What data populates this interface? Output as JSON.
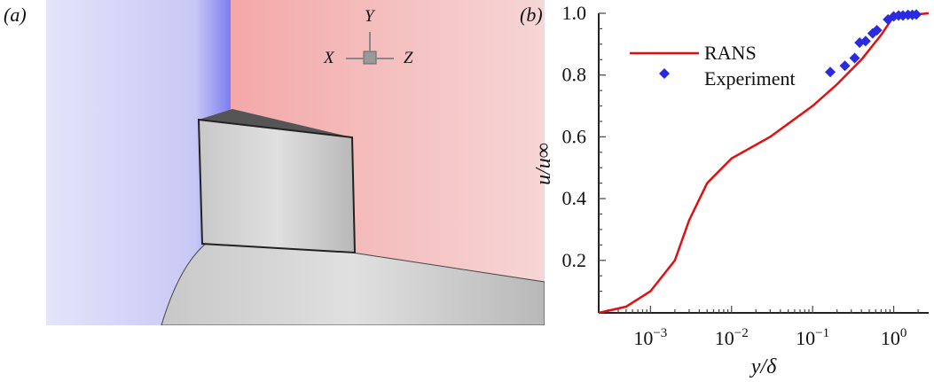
{
  "panel_a": {
    "label": "(a)",
    "axes": {
      "x": "X",
      "y": "Y",
      "z": "Z"
    }
  },
  "panel_b": {
    "label": "(b)"
  },
  "colors": {
    "rans": "#e01010",
    "experiment": "#2a2ae0"
  },
  "chart_data": {
    "type": "line",
    "xscale": "log",
    "xlabel": "y/δ",
    "ylabel": "u/u∞",
    "xlim": [
      0.00023,
      2.7
    ],
    "ylim": [
      0.03,
      1.0
    ],
    "xticks": [
      {
        "value": 0.001,
        "label": "10",
        "exp": "−3"
      },
      {
        "value": 0.01,
        "label": "10",
        "exp": "−2"
      },
      {
        "value": 0.1,
        "label": "10",
        "exp": "−1"
      },
      {
        "value": 1,
        "label": "10",
        "exp": "0"
      }
    ],
    "yticks": [
      {
        "value": 0.2,
        "label": "0.2"
      },
      {
        "value": 0.4,
        "label": "0.4"
      },
      {
        "value": 0.6,
        "label": "0.6"
      },
      {
        "value": 0.8,
        "label": "0.8"
      },
      {
        "value": 1.0,
        "label": "1.0"
      }
    ],
    "legend_position": "top-left",
    "series": [
      {
        "name": "RANS",
        "kind": "line",
        "x": [
          0.00023,
          0.0005,
          0.001,
          0.002,
          0.003,
          0.005,
          0.01,
          0.03,
          0.1,
          0.2,
          0.4,
          0.7,
          1.0,
          2.7
        ],
        "y": [
          0.03,
          0.05,
          0.1,
          0.2,
          0.33,
          0.45,
          0.53,
          0.6,
          0.7,
          0.77,
          0.85,
          0.93,
          0.99,
          1.0
        ]
      },
      {
        "name": "Experiment",
        "kind": "scatter",
        "x": [
          0.165,
          0.25,
          0.33,
          0.38,
          0.45,
          0.55,
          0.62,
          0.85,
          1.0,
          1.15,
          1.3,
          1.5,
          1.7,
          1.9
        ],
        "y": [
          0.81,
          0.83,
          0.855,
          0.905,
          0.91,
          0.935,
          0.945,
          0.98,
          0.99,
          0.993,
          0.993,
          0.995,
          0.995,
          0.996
        ]
      }
    ]
  }
}
